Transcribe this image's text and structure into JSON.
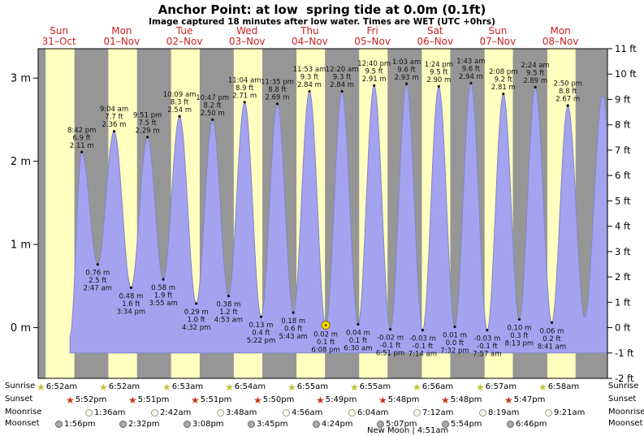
{
  "title": "Anchor Point: at low  spring tide at 0.0m (0.1ft)",
  "subtitle": "Image captured 18 minutes after low water. Times are WET (UTC +0hrs)",
  "colors": {
    "day_band": "#ffffbf",
    "night_band": "#969696",
    "tide_fill": "#a3a3ef",
    "tide_stroke": "#8585c8",
    "day_label": "#cc2222",
    "sunrise_star": "#c2c22e",
    "sunset_star": "#cc3311",
    "moonrise_icon": "#ffffe6",
    "moonset_icon": "#aaaaaa",
    "sun_marker": "#ffe000"
  },
  "days": [
    {
      "name": "Sun",
      "date": "31–Oct"
    },
    {
      "name": "Mon",
      "date": "01–Nov"
    },
    {
      "name": "Tue",
      "date": "02–Nov"
    },
    {
      "name": "Wed",
      "date": "03–Nov"
    },
    {
      "name": "Thu",
      "date": "04–Nov"
    },
    {
      "name": "Fri",
      "date": "05–Nov"
    },
    {
      "name": "Sat",
      "date": "06–Nov"
    },
    {
      "name": "Sun",
      "date": "07–Nov"
    },
    {
      "name": "Mon",
      "date": "08–Nov"
    }
  ],
  "axes": {
    "left_labels": [
      {
        "value": 0,
        "label": "0 m"
      },
      {
        "value": 1,
        "label": "1 m"
      },
      {
        "value": 2,
        "label": "2 m"
      },
      {
        "value": 3,
        "label": "3 m"
      }
    ],
    "right_unit": "ft",
    "right_min": -2,
    "right_max": 11
  },
  "chart_data": {
    "type": "area",
    "title": "Tide height curve for Anchor Point, 31-Oct to 08-Nov",
    "ylabel_left": "metres",
    "ylabel_right": "feet",
    "y_right_range": [
      -2,
      11
    ],
    "tide_events": [
      {
        "type": "high",
        "day": 0,
        "time": "8:42 pm",
        "m": 2.11,
        "ft": 6.9
      },
      {
        "type": "low",
        "day": 1,
        "time": "2:47 am",
        "m": 0.76,
        "ft": 2.5
      },
      {
        "type": "high",
        "day": 1,
        "time": "9:04 am",
        "m": 2.36,
        "ft": 7.7
      },
      {
        "type": "low",
        "day": 1,
        "time": "3:34 pm",
        "m": 0.48,
        "ft": 1.6
      },
      {
        "type": "high",
        "day": 1,
        "time": "9:51 pm",
        "m": 2.29,
        "ft": 7.5
      },
      {
        "type": "low",
        "day": 2,
        "time": "3:55 am",
        "m": 0.58,
        "ft": 1.9
      },
      {
        "type": "high",
        "day": 2,
        "time": "10:09 am",
        "m": 2.54,
        "ft": 8.3
      },
      {
        "type": "low",
        "day": 2,
        "time": "4:32 pm",
        "m": 0.29,
        "ft": 1.0
      },
      {
        "type": "high",
        "day": 2,
        "time": "10:47 pm",
        "m": 2.5,
        "ft": 8.2
      },
      {
        "type": "low",
        "day": 3,
        "time": "4:53 am",
        "m": 0.38,
        "ft": 1.2
      },
      {
        "type": "high",
        "day": 3,
        "time": "11:04 am",
        "m": 2.71,
        "ft": 8.9
      },
      {
        "type": "low",
        "day": 3,
        "time": "5:22 pm",
        "m": 0.13,
        "ft": 0.4
      },
      {
        "type": "high",
        "day": 3,
        "time": "11:35 pm",
        "m": 2.69,
        "ft": 8.8
      },
      {
        "type": "low",
        "day": 4,
        "time": "5:43 am",
        "m": 0.18,
        "ft": 0.6
      },
      {
        "type": "high",
        "day": 4,
        "time": "11:53 am",
        "m": 2.84,
        "ft": 9.3
      },
      {
        "type": "low",
        "day": 4,
        "time": "6:08 pm",
        "m": 0.02,
        "ft": 0.1,
        "marker": true
      },
      {
        "type": "high",
        "day": 5,
        "time": "12:20 am",
        "m": 2.84,
        "ft": 9.3
      },
      {
        "type": "low",
        "day": 5,
        "time": "6:30 am",
        "m": 0.04,
        "ft": 0.1
      },
      {
        "type": "high",
        "day": 5,
        "time": "12:40 pm",
        "m": 2.91,
        "ft": 9.5
      },
      {
        "type": "low",
        "day": 5,
        "time": "6:51 pm",
        "m": -0.02,
        "ft": -0.1
      },
      {
        "type": "high",
        "day": 6,
        "time": "1:03 am",
        "m": 2.93,
        "ft": 9.6
      },
      {
        "type": "low",
        "day": 6,
        "time": "7:14 am",
        "m": -0.03,
        "ft": -0.1
      },
      {
        "type": "high",
        "day": 6,
        "time": "1:24 pm",
        "m": 2.9,
        "ft": 9.5
      },
      {
        "type": "low",
        "day": 6,
        "time": "7:32 pm",
        "m": 0.01,
        "ft": 0.0
      },
      {
        "type": "high",
        "day": 7,
        "time": "1:43 am",
        "m": 2.94,
        "ft": 9.6
      },
      {
        "type": "low",
        "day": 7,
        "time": "7:57 am",
        "m": -0.03,
        "ft": -0.1
      },
      {
        "type": "high",
        "day": 7,
        "time": "2:08 pm",
        "m": 2.81,
        "ft": 9.2
      },
      {
        "type": "low",
        "day": 7,
        "time": "8:13 pm",
        "m": 0.1,
        "ft": 0.3
      },
      {
        "type": "high",
        "day": 8,
        "time": "2:24 am",
        "m": 2.89,
        "ft": 9.5
      },
      {
        "type": "low",
        "day": 8,
        "time": "8:41 am",
        "m": 0.06,
        "ft": 0.2
      },
      {
        "type": "high",
        "day": 8,
        "time": "2:50 pm",
        "m": 2.67,
        "ft": 8.8
      }
    ]
  },
  "astro": {
    "sunrise": {
      "label": "Sunrise",
      "events": [
        {
          "day": 0,
          "time": "6:52am"
        },
        {
          "day": 1,
          "time": "6:52am"
        },
        {
          "day": 2,
          "time": "6:53am"
        },
        {
          "day": 3,
          "time": "6:54am"
        },
        {
          "day": 4,
          "time": "6:55am"
        },
        {
          "day": 5,
          "time": "6:55am"
        },
        {
          "day": 6,
          "time": "6:56am"
        },
        {
          "day": 7,
          "time": "6:57am"
        },
        {
          "day": 8,
          "time": "6:58am"
        }
      ]
    },
    "sunset": {
      "label": "Sunset",
      "events": [
        {
          "day": 0,
          "time": "5:52pm"
        },
        {
          "day": 1,
          "time": "5:51pm"
        },
        {
          "day": 2,
          "time": "5:51pm"
        },
        {
          "day": 3,
          "time": "5:50pm"
        },
        {
          "day": 4,
          "time": "5:49pm"
        },
        {
          "day": 5,
          "time": "5:48pm"
        },
        {
          "day": 6,
          "time": "5:48pm"
        },
        {
          "day": 7,
          "time": "5:47pm"
        }
      ]
    },
    "moonrise": {
      "label": "Moonrise",
      "events": [
        {
          "day": 1,
          "time": "1:36am"
        },
        {
          "day": 2,
          "time": "2:42am"
        },
        {
          "day": 3,
          "time": "3:48am"
        },
        {
          "day": 4,
          "time": "4:56am"
        },
        {
          "day": 5,
          "time": "6:04am"
        },
        {
          "day": 6,
          "time": "7:12am"
        },
        {
          "day": 7,
          "time": "8:19am"
        },
        {
          "day": 8,
          "time": "9:21am"
        }
      ]
    },
    "moonset": {
      "label": "Moonset",
      "events": [
        {
          "day": 0,
          "time": "1:56pm"
        },
        {
          "day": 1,
          "time": "2:32pm"
        },
        {
          "day": 2,
          "time": "3:08pm"
        },
        {
          "day": 3,
          "time": "3:45pm"
        },
        {
          "day": 4,
          "time": "4:24pm"
        },
        {
          "day": 5,
          "time": "5:07pm"
        },
        {
          "day": 6,
          "time": "5:54pm"
        },
        {
          "day": 7,
          "time": "6:46pm"
        }
      ]
    },
    "new_moon": "New Moon | 4:51am"
  }
}
